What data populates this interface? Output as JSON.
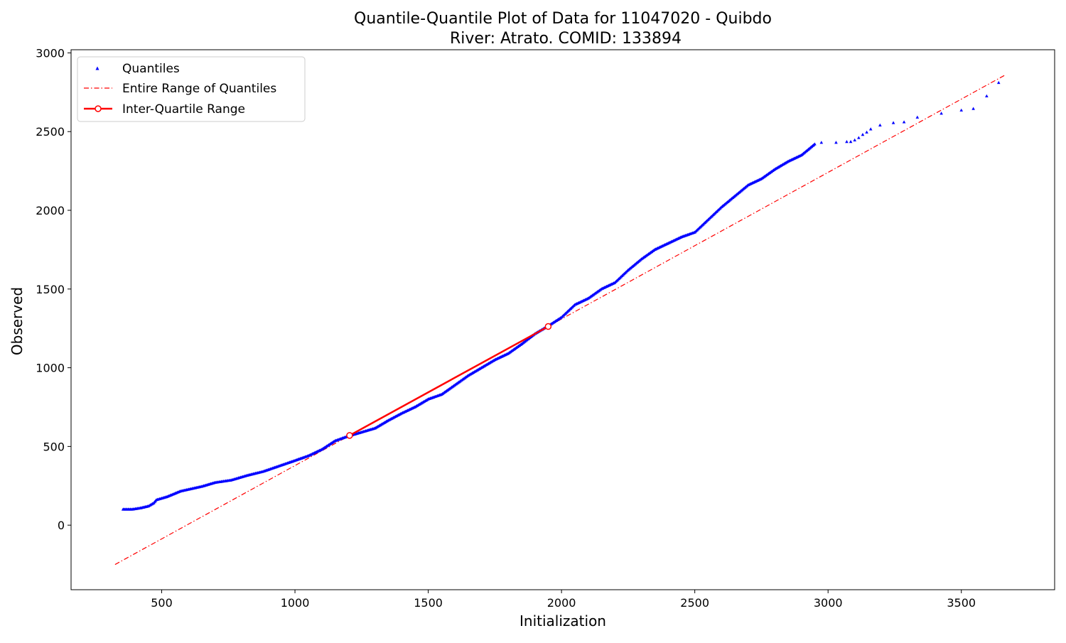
{
  "chart_data": {
    "type": "scatter",
    "title": "Quantile-Quantile Plot of Data for 11047020 - Quibdo",
    "subtitle": "River: Atrato. COMID: 133894",
    "xlabel": "Initialization",
    "ylabel": "Observed",
    "xlim": [
      160,
      3850
    ],
    "ylim": [
      -410,
      3020
    ],
    "xticks": [
      500,
      1000,
      1500,
      2000,
      2500,
      3000,
      3500
    ],
    "yticks": [
      0,
      500,
      1000,
      1500,
      2000,
      2500,
      3000
    ],
    "grid": false,
    "legend_position": "top-left",
    "series": [
      {
        "name": "Quantiles",
        "style": "markers",
        "marker": "triangle",
        "color": "#0000ff",
        "anchors": [
          [
            355,
            100
          ],
          [
            390,
            100
          ],
          [
            420,
            108
          ],
          [
            450,
            120
          ],
          [
            470,
            140
          ],
          [
            480,
            160
          ],
          [
            520,
            180
          ],
          [
            570,
            215
          ],
          [
            650,
            245
          ],
          [
            700,
            270
          ],
          [
            760,
            285
          ],
          [
            820,
            315
          ],
          [
            880,
            340
          ],
          [
            940,
            375
          ],
          [
            1000,
            410
          ],
          [
            1050,
            440
          ],
          [
            1100,
            480
          ],
          [
            1150,
            535
          ],
          [
            1200,
            565
          ],
          [
            1250,
            590
          ],
          [
            1300,
            615
          ],
          [
            1350,
            665
          ],
          [
            1400,
            710
          ],
          [
            1450,
            750
          ],
          [
            1500,
            800
          ],
          [
            1550,
            830
          ],
          [
            1600,
            890
          ],
          [
            1650,
            950
          ],
          [
            1700,
            1000
          ],
          [
            1750,
            1050
          ],
          [
            1800,
            1090
          ],
          [
            1850,
            1150
          ],
          [
            1900,
            1215
          ],
          [
            1950,
            1265
          ],
          [
            2000,
            1320
          ],
          [
            2050,
            1400
          ],
          [
            2100,
            1440
          ],
          [
            2150,
            1500
          ],
          [
            2200,
            1540
          ],
          [
            2250,
            1620
          ],
          [
            2300,
            1690
          ],
          [
            2350,
            1750
          ],
          [
            2400,
            1790
          ],
          [
            2450,
            1830
          ],
          [
            2500,
            1860
          ],
          [
            2550,
            1940
          ],
          [
            2600,
            2020
          ],
          [
            2650,
            2090
          ],
          [
            2700,
            2160
          ],
          [
            2750,
            2200
          ],
          [
            2800,
            2260
          ],
          [
            2850,
            2310
          ],
          [
            2900,
            2350
          ],
          [
            2950,
            2420
          ]
        ],
        "tail_points": [
          [
            2975,
            2430
          ],
          [
            3030,
            2430
          ],
          [
            3070,
            2435
          ],
          [
            3085,
            2435
          ],
          [
            3100,
            2445
          ],
          [
            3115,
            2460
          ],
          [
            3130,
            2480
          ],
          [
            3145,
            2495
          ],
          [
            3160,
            2515
          ],
          [
            3195,
            2540
          ],
          [
            3245,
            2555
          ],
          [
            3285,
            2560
          ],
          [
            3335,
            2590
          ],
          [
            3425,
            2615
          ],
          [
            3500,
            2635
          ],
          [
            3545,
            2645
          ],
          [
            3595,
            2725
          ],
          [
            3640,
            2810
          ]
        ]
      },
      {
        "name": "Entire Range of Quantiles",
        "style": "dash-dot line",
        "color": "#ff0000",
        "x": [
          325,
          3665
        ],
        "y": [
          -250,
          2860
        ]
      },
      {
        "name": "Inter-Quartile Range",
        "style": "solid line with circle markers",
        "color": "#ff0000",
        "x": [
          1205,
          1950
        ],
        "y": [
          570,
          1262
        ]
      }
    ]
  }
}
